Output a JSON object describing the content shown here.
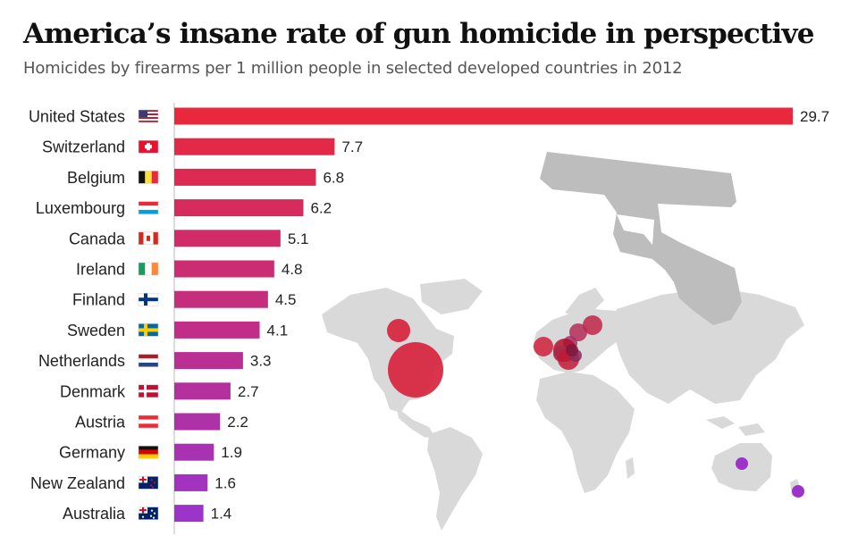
{
  "header": {
    "title": "America’s insane rate of gun homicide in perspective",
    "subtitle": "Homicides by firearms per 1 million people in selected developed countries in 2012"
  },
  "chart_data": {
    "type": "bar",
    "orientation": "horizontal",
    "title": "America’s insane rate of gun homicide in perspective",
    "subtitle": "Homicides by firearms per 1 million people in selected developed countries in 2012",
    "xlabel": "",
    "ylabel": "",
    "xlim": [
      0,
      29.7
    ],
    "grid": false,
    "legend": "none",
    "categories": [
      "United States",
      "Switzerland",
      "Belgium",
      "Luxembourg",
      "Canada",
      "Ireland",
      "Finland",
      "Sweden",
      "Netherlands",
      "Denmark",
      "Austria",
      "Germany",
      "New Zealand",
      "Australia"
    ],
    "values": [
      29.7,
      7.7,
      6.8,
      6.2,
      5.1,
      4.8,
      4.5,
      4.1,
      3.3,
      2.7,
      2.2,
      1.9,
      1.6,
      1.4
    ],
    "value_labels": [
      "29.7",
      "7.7",
      "6.8",
      "6.2",
      "5.1",
      "4.8",
      "4.5",
      "4.1",
      "3.3",
      "2.7",
      "2.2",
      "1.9",
      "1.6",
      "1.4"
    ],
    "flags": [
      "us-flag-icon",
      "switzerland-flag-icon",
      "belgium-flag-icon",
      "luxembourg-flag-icon",
      "canada-flag-icon",
      "ireland-flag-icon",
      "finland-flag-icon",
      "sweden-flag-icon",
      "netherlands-flag-icon",
      "denmark-flag-icon",
      "austria-flag-icon",
      "germany-flag-icon",
      "new-zealand-flag-icon",
      "australia-flag-icon"
    ],
    "color_start": "#e8283c",
    "color_end": "#9d34c9"
  },
  "decor": {
    "gun_icon": "pistol-icon",
    "map_icon": "world-map-icon",
    "map_color": "#d9d9d9",
    "gun_color": "#bdbdbd"
  }
}
